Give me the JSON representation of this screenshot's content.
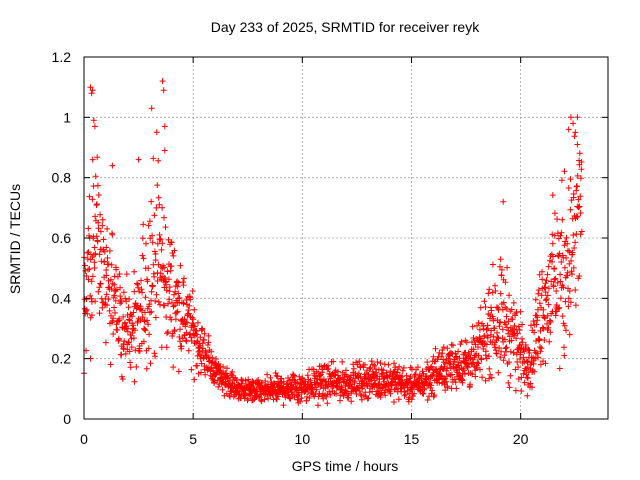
{
  "chart_data": {
    "type": "scatter",
    "title": "Day 233 of 2025, SRMTID for receiver reyk",
    "xlabel": "GPS time / hours",
    "ylabel": "SRMTID / TECUs",
    "xlim": [
      0,
      24
    ],
    "ylim": [
      0,
      1.2
    ],
    "x_ticks": [
      0,
      5,
      10,
      15,
      20
    ],
    "x_tick_labels": [
      "0",
      "5",
      "10",
      "15",
      "20"
    ],
    "y_ticks": [
      0,
      0.2,
      0.4,
      0.6,
      0.8,
      1.0,
      1.2
    ],
    "y_tick_labels": [
      "0",
      "0.2",
      "0.4",
      "0.6",
      "0.8",
      "1",
      "1.2"
    ],
    "grid": true,
    "marker": "+",
    "series": [
      {
        "name": "reyk",
        "color": "#ff0000",
        "profile_x": [
          0,
          0.3,
          0.6,
          1.0,
          1.5,
          2.0,
          2.5,
          3.0,
          3.3,
          3.6,
          4.0,
          4.5,
          5.0,
          5.5,
          6.0,
          6.5,
          7.0,
          8.0,
          9.0,
          10.0,
          11.0,
          12.0,
          13.0,
          14.0,
          15.0,
          15.5,
          16.0,
          17.0,
          18.0,
          18.5,
          19.0,
          19.5,
          20.0,
          20.5,
          21.0,
          21.5,
          22.0,
          22.5,
          22.8
        ],
        "profile_y": [
          0.38,
          0.55,
          0.6,
          0.45,
          0.35,
          0.28,
          0.3,
          0.5,
          0.55,
          0.48,
          0.42,
          0.35,
          0.28,
          0.22,
          0.16,
          0.13,
          0.1,
          0.09,
          0.1,
          0.11,
          0.12,
          0.12,
          0.13,
          0.13,
          0.11,
          0.12,
          0.15,
          0.18,
          0.2,
          0.3,
          0.35,
          0.3,
          0.22,
          0.2,
          0.38,
          0.45,
          0.5,
          0.6,
          0.75
        ],
        "profile_spread": [
          0.2,
          0.3,
          0.35,
          0.2,
          0.18,
          0.15,
          0.2,
          0.3,
          0.35,
          0.3,
          0.2,
          0.15,
          0.12,
          0.08,
          0.05,
          0.05,
          0.04,
          0.04,
          0.05,
          0.06,
          0.06,
          0.06,
          0.06,
          0.06,
          0.05,
          0.06,
          0.07,
          0.08,
          0.1,
          0.15,
          0.2,
          0.18,
          0.12,
          0.1,
          0.2,
          0.25,
          0.3,
          0.3,
          0.3
        ],
        "n_points": 1900,
        "outliers": [
          [
            0.3,
            1.1
          ],
          [
            0.35,
            1.08
          ],
          [
            0.4,
            1.09
          ],
          [
            0.45,
            0.99
          ],
          [
            0.5,
            0.97
          ],
          [
            0.4,
            0.86
          ],
          [
            3.1,
            1.03
          ],
          [
            3.6,
            1.12
          ],
          [
            3.65,
            1.09
          ],
          [
            3.7,
            0.97
          ],
          [
            3.7,
            0.89
          ],
          [
            1.3,
            0.84
          ],
          [
            2.5,
            0.86
          ],
          [
            22.3,
            1.0
          ],
          [
            22.4,
            0.98
          ],
          [
            22.5,
            0.95
          ],
          [
            22.6,
            1.0
          ],
          [
            22.2,
            0.96
          ],
          [
            22.6,
            0.91
          ],
          [
            22.0,
            0.21
          ],
          [
            19.2,
            0.72
          ]
        ]
      }
    ]
  }
}
